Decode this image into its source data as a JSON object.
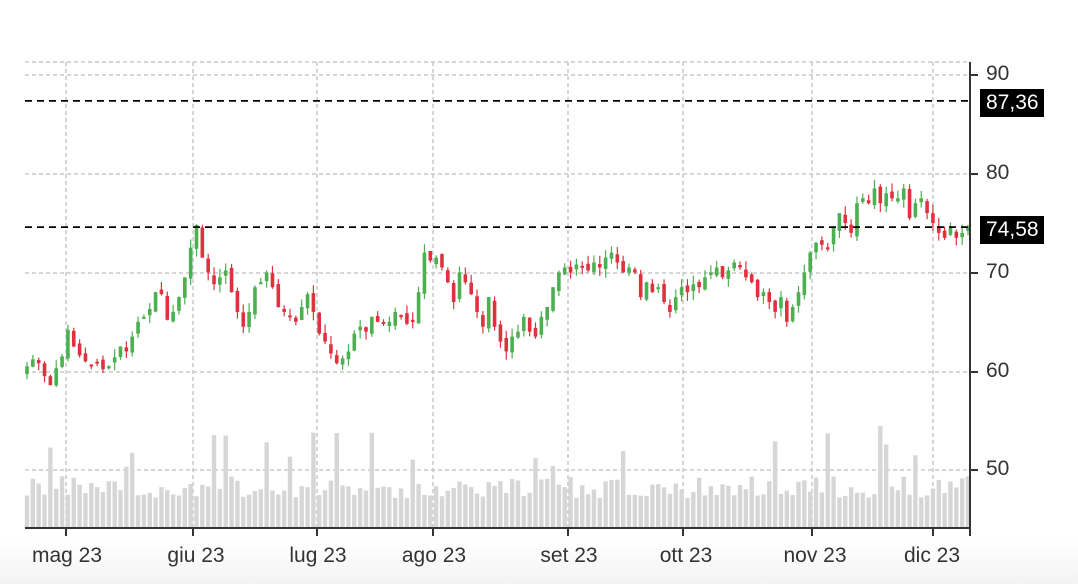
{
  "chart_data": {
    "type": "candlestick",
    "title": "",
    "xlabel": "",
    "ylabel": "",
    "ylim": [
      44,
      92
    ],
    "y_ticks": [
      50,
      60,
      70,
      80,
      90
    ],
    "y_tick_labels": [
      "50",
      "60",
      "70",
      "80",
      "90"
    ],
    "x_ticks": [
      "mag 23",
      "giu 23",
      "lug 23",
      "ago 23",
      "set 23",
      "ott 23",
      "nov 23",
      "dic 23"
    ],
    "grid": true,
    "reference_lines": [
      {
        "value": 87.36,
        "label": "87,36",
        "style": "dashed",
        "color": "#000000"
      },
      {
        "value": 74.58,
        "label": "74,58",
        "style": "dashed",
        "color": "#000000"
      }
    ],
    "colors": {
      "up": "#4caf50",
      "down": "#e0313f",
      "volume": "#d6d6d6",
      "grid": "#c8c8c8",
      "axis": "#333333"
    },
    "approx_close_series": [
      60.5,
      61.2,
      60.8,
      59.5,
      58.6,
      60.3,
      61.5,
      64.2,
      62.5,
      61.6,
      61.0,
      60.6,
      60.9,
      60.2,
      60.5,
      61.4,
      62.5,
      62.0,
      63.5,
      65.0,
      65.5,
      66.3,
      68.0,
      67.8,
      65.2,
      66.0,
      67.5,
      69.5,
      72.5,
      74.8,
      71.5,
      70.0,
      68.8,
      69.5,
      70.2,
      68.0,
      66.0,
      64.5,
      66.0,
      68.5,
      69.0,
      70.0,
      68.5,
      66.5,
      66.0,
      65.5,
      65.0,
      66.5,
      67.8,
      66.0,
      63.8,
      63.0,
      61.8,
      60.8,
      61.3,
      62.0,
      63.8,
      64.5,
      64.0,
      65.5,
      65.0,
      64.8,
      65.0,
      66.0,
      65.5,
      64.8,
      65.0,
      68.0,
      72.0,
      71.2,
      71.5,
      70.5,
      69.0,
      67.0,
      70.0,
      69.0,
      67.8,
      66.0,
      64.5,
      67.5,
      64.5,
      63.0,
      62.0,
      63.5,
      64.0,
      65.5,
      64.0,
      63.5,
      65.5,
      66.5,
      68.5,
      70.0,
      70.5,
      70.0,
      70.8,
      70.5,
      70.2,
      71.0,
      70.5,
      71.5,
      72.0,
      71.0,
      70.0,
      70.5,
      70.0,
      67.5,
      69.0,
      68.0,
      68.5,
      67.0,
      66.0,
      67.5,
      68.5,
      68.0,
      68.8,
      68.5,
      69.5,
      70.0,
      70.5,
      69.5,
      70.2,
      71.0,
      70.5,
      69.5,
      69.0,
      67.5,
      68.0,
      67.0,
      66.0,
      67.5,
      65.0,
      66.5,
      68.0,
      70.0,
      72.0,
      73.0,
      72.8,
      72.5,
      74.5,
      76.0,
      75.0,
      74.0,
      77.0,
      77.5,
      77.0,
      78.5,
      77.0,
      78.0,
      77.5,
      77.5,
      78.5,
      75.5,
      77.0,
      77.5,
      76.0,
      75.0,
      74.0,
      73.5,
      74.5,
      73.5,
      74.0,
      74.6
    ],
    "volume_note": "Light gray volume bars along bottom of plot, mostly near baseline with spikes in early June, early July, late September and November"
  },
  "axis": {
    "y_labels": [
      "90",
      "80",
      "70",
      "60",
      "50"
    ],
    "x_labels": [
      "mag 23",
      "giu 23",
      "lug 23",
      "ago 23",
      "set 23",
      "ott 23",
      "nov 23",
      "dic 23"
    ]
  },
  "price_tags": {
    "upper": "87,36",
    "lower": "74,58"
  }
}
